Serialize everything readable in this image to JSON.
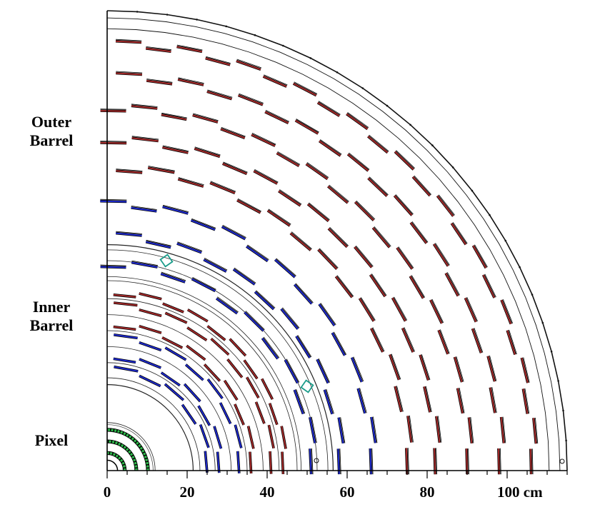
{
  "labels": {
    "outer_line1": "Outer",
    "outer_line2": "Barrel",
    "inner_line1": "Inner",
    "inner_line2": "Barrel",
    "pixel": "Pixel"
  },
  "axis": {
    "ticks": [
      0,
      20,
      40,
      60,
      80,
      100
    ],
    "unit": "cm",
    "max": 115
  },
  "colors": {
    "stereo": "#a52a2a",
    "rphi": "#1f2bd1",
    "pixel_fill": "#2db84a",
    "marker": "#1a9c8a",
    "frame": "#000000"
  },
  "layers": [
    {
      "r": 25,
      "n": 24,
      "color": "rphi",
      "type": "tib"
    },
    {
      "r": 28,
      "n": 28,
      "color": "rphi",
      "type": "tib"
    },
    {
      "r": 33,
      "n": 32,
      "color": "rphi",
      "type": "tib"
    },
    {
      "r": 36,
      "n": 36,
      "color": "stereo",
      "type": "tib"
    },
    {
      "r": 41,
      "n": 40,
      "color": "stereo",
      "type": "tib"
    },
    {
      "r": 44,
      "n": 44,
      "color": "stereo",
      "type": "tib"
    },
    {
      "r": 51,
      "n": 42,
      "color": "rphi",
      "type": "tob"
    },
    {
      "r": 58,
      "n": 48,
      "color": "rphi",
      "type": "tob"
    },
    {
      "r": 66,
      "n": 54,
      "color": "rphi",
      "type": "tob"
    },
    {
      "r": 75,
      "n": 60,
      "color": "stereo",
      "type": "tob"
    },
    {
      "r": 82,
      "n": 66,
      "color": "stereo",
      "type": "tob"
    },
    {
      "r": 90,
      "n": 74,
      "color": "stereo",
      "type": "tob"
    },
    {
      "r": 98,
      "n": 80,
      "color": "stereo",
      "type": "tob"
    },
    {
      "r": 106,
      "n": 88,
      "color": "stereo",
      "type": "tob"
    }
  ],
  "pixel_layers": [
    4.4,
    7.3,
    10.2
  ]
}
